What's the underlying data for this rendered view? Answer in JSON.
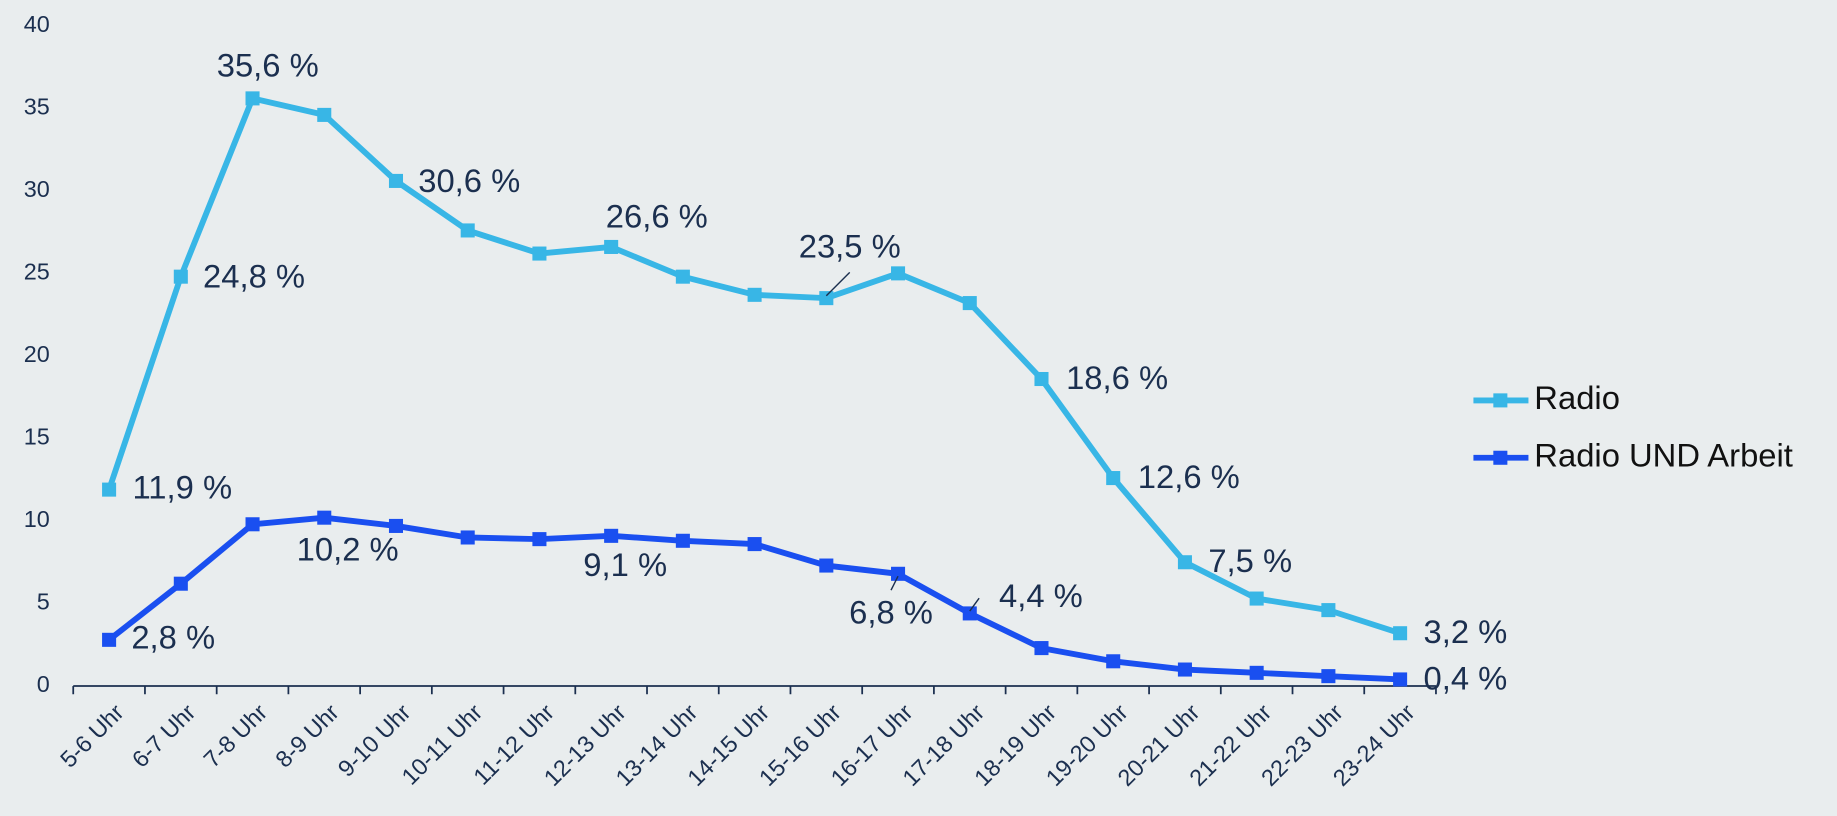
{
  "chart_data": {
    "type": "line",
    "categories": [
      "5-6 Uhr",
      "6-7 Uhr",
      "7-8 Uhr",
      "8-9 Uhr",
      "9-10 Uhr",
      "10-11 Uhr",
      "11-12 Uhr",
      "12-13 Uhr",
      "13-14 Uhr",
      "14-15 Uhr",
      "15-16 Uhr",
      "16-17 Uhr",
      "17-18 Uhr",
      "18-19 Uhr",
      "19-20 Uhr",
      "20-21 Uhr",
      "21-22 Uhr",
      "22-23 Uhr",
      "23-24 Uhr"
    ],
    "series": [
      {
        "name": "Radio",
        "color": "#38b6e6",
        "values": [
          11.9,
          24.8,
          35.6,
          34.6,
          30.6,
          27.6,
          26.2,
          26.6,
          24.8,
          23.7,
          23.5,
          25.0,
          23.2,
          18.6,
          12.6,
          7.5,
          5.3,
          4.6,
          3.2
        ],
        "value_labels": [
          "11,9 %",
          "24,8 %",
          "35,6 %",
          null,
          "30,6 %",
          null,
          null,
          "26,6 %",
          null,
          null,
          "23,5 %",
          null,
          null,
          "18,6 %",
          "12,6 %",
          "7,5 %",
          null,
          null,
          "3,2 %"
        ]
      },
      {
        "name": "Radio UND Arbeit",
        "color": "#1a4ff0",
        "values": [
          2.8,
          6.2,
          9.8,
          10.2,
          9.7,
          9.0,
          8.9,
          9.1,
          8.8,
          8.6,
          7.3,
          6.8,
          4.4,
          2.3,
          1.5,
          1.0,
          0.8,
          0.6,
          0.4
        ],
        "value_labels": [
          "2,8 %",
          null,
          null,
          "10,2 %",
          null,
          null,
          null,
          "9,1 %",
          null,
          null,
          null,
          "6,8 %",
          "4,4 %",
          null,
          null,
          null,
          null,
          null,
          "0,4 %"
        ]
      }
    ],
    "ylim": [
      0,
      40
    ],
    "yticks": [
      0,
      5,
      10,
      15,
      20,
      25,
      30,
      35,
      40
    ],
    "grid": false,
    "legend": "right"
  }
}
